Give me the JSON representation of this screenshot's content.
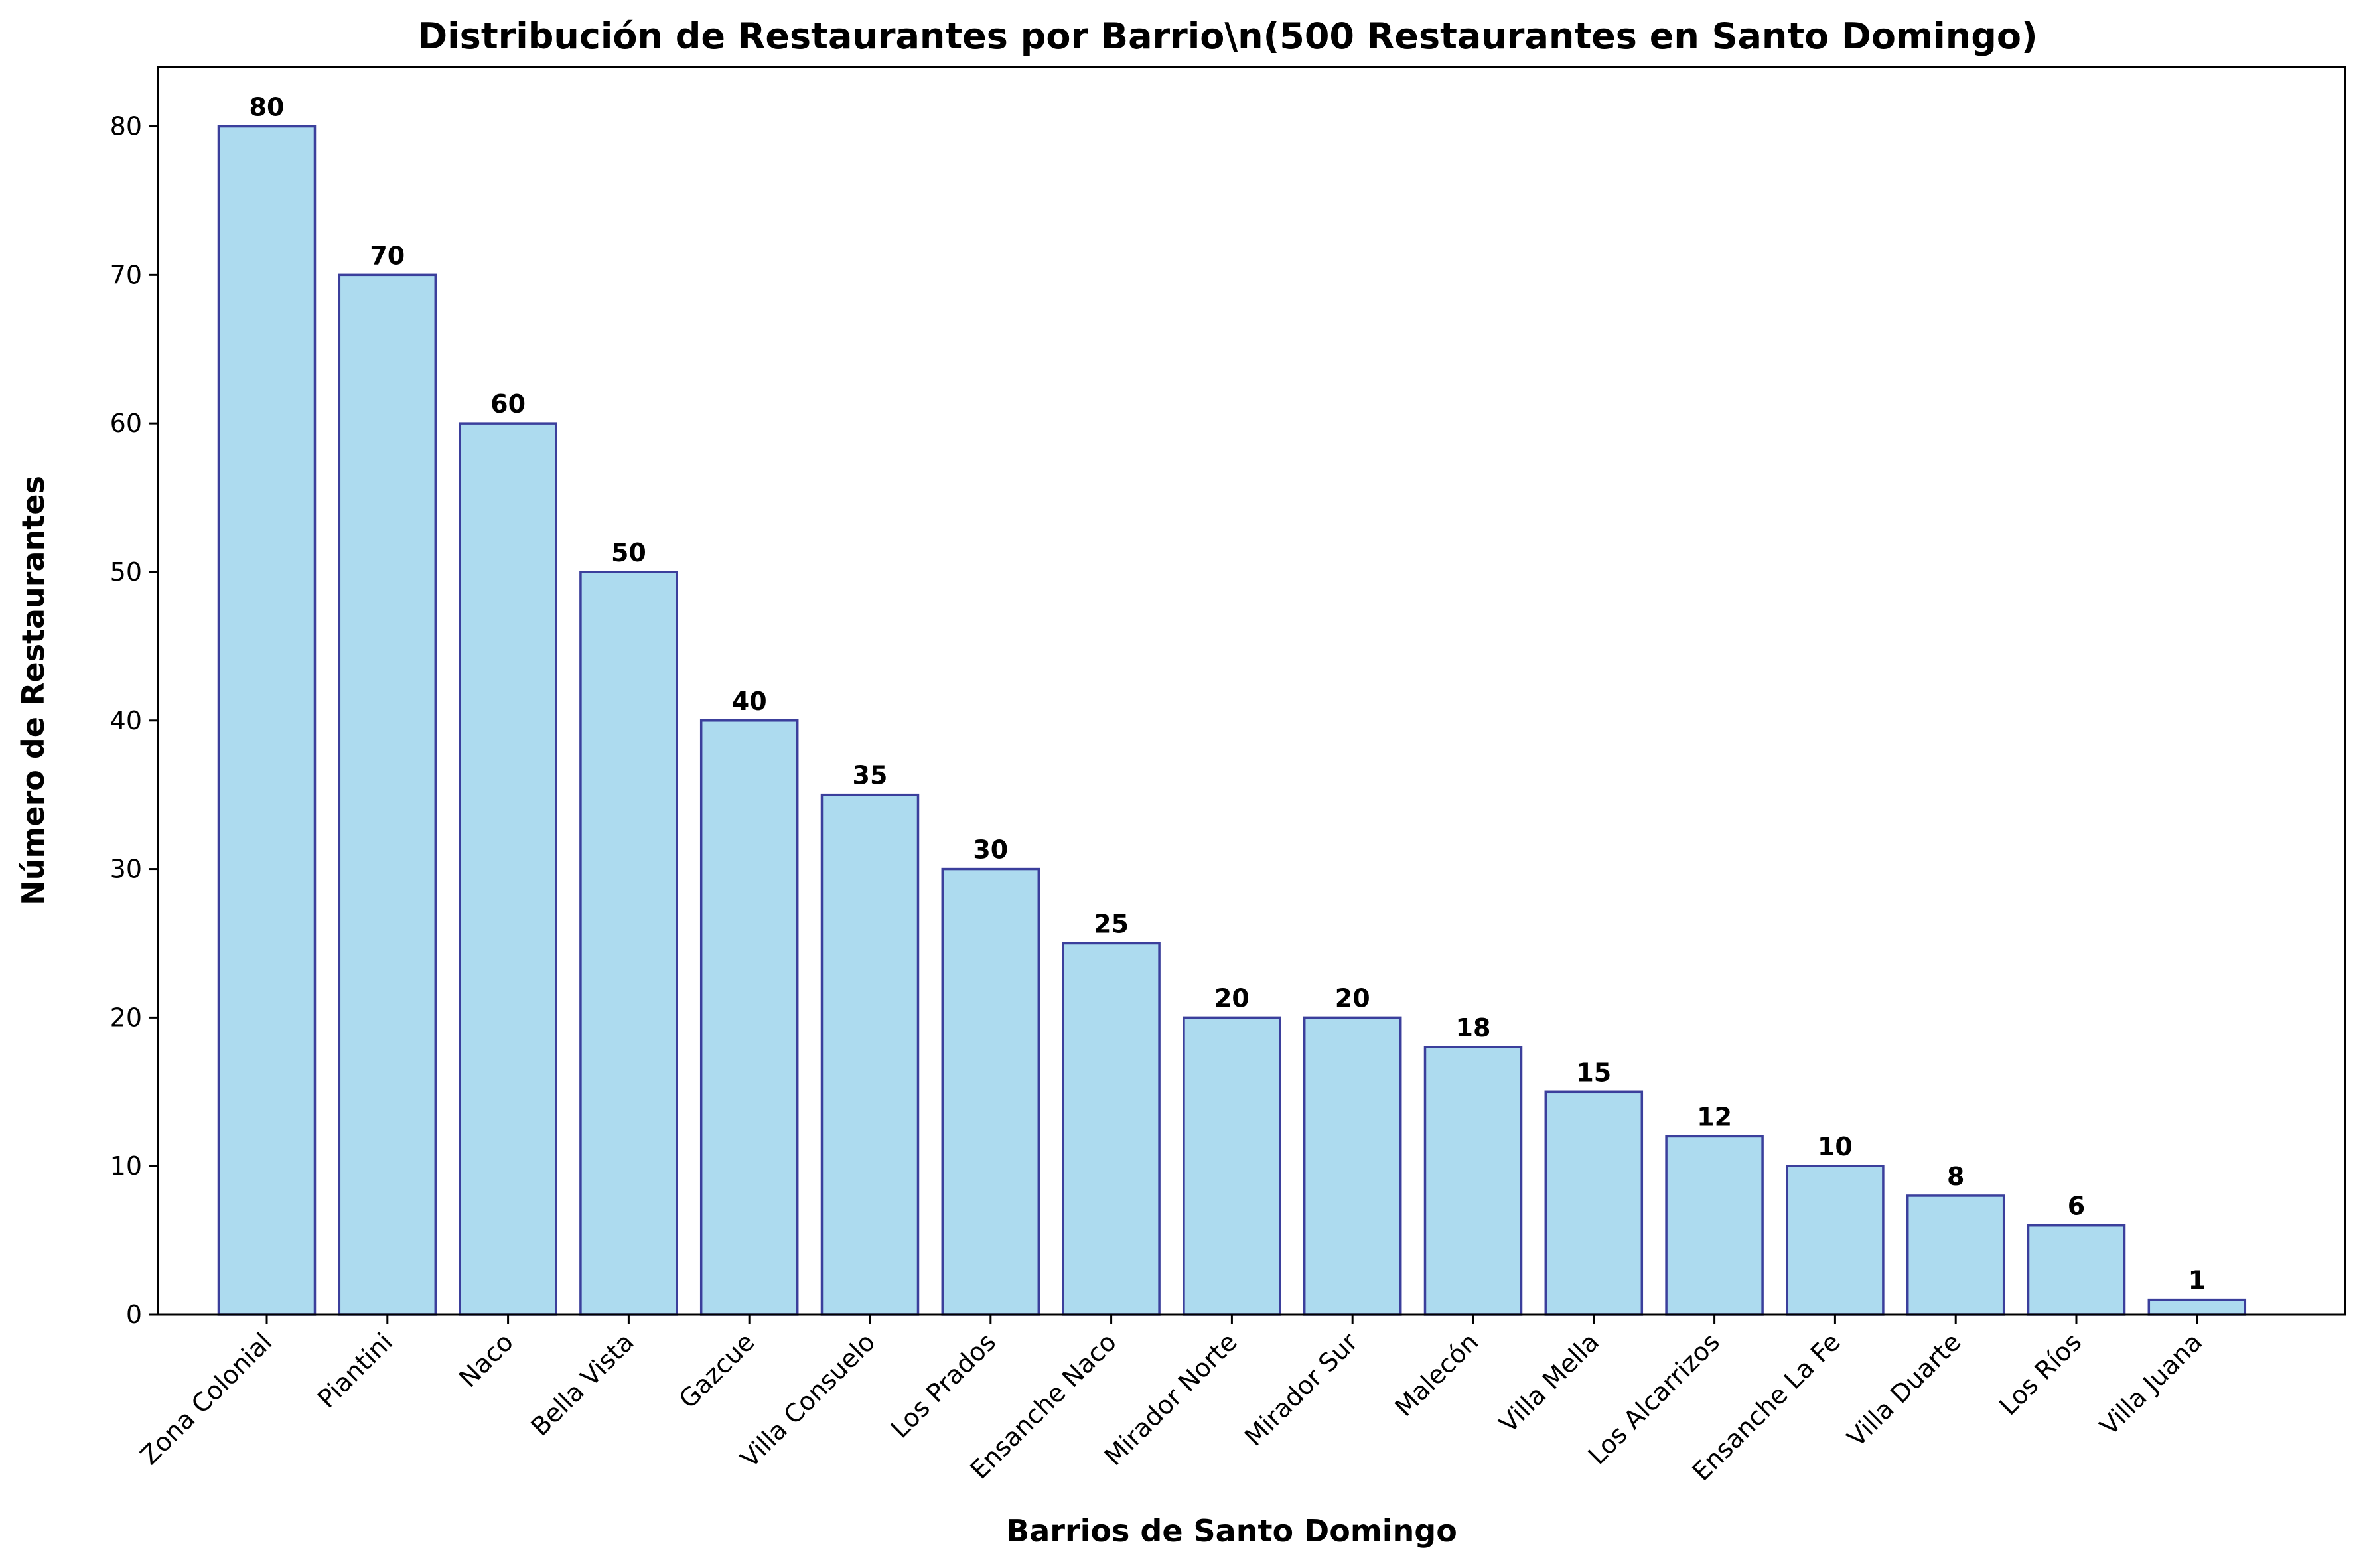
{
  "chart_data": {
    "type": "bar",
    "title": "Distribución de Restaurantes por Barrio\\n(500 Restaurantes en Santo Domingo)",
    "xlabel": "Barrios de Santo Domingo",
    "ylabel": "Número de Restaurantes",
    "categories": [
      "Zona Colonial",
      "Piantini",
      "Naco",
      "Bella Vista",
      "Gazcue",
      "Villa Consuelo",
      "Los Prados",
      "Ensanche Naco",
      "Mirador Norte",
      "Mirador Sur",
      "Malecón",
      "Villa Mella",
      "Los Alcarrizos",
      "Ensanche La Fe",
      "Villa Duarte",
      "Los Ríos",
      "Villa Juana"
    ],
    "values": [
      80,
      70,
      60,
      50,
      40,
      35,
      30,
      25,
      20,
      20,
      18,
      15,
      12,
      10,
      8,
      6,
      1
    ],
    "data_labels": [
      "80",
      "70",
      "60",
      "50",
      "40",
      "35",
      "30",
      "25",
      "20",
      "20",
      "18",
      "15",
      "12",
      "10",
      "8",
      "6",
      "1"
    ],
    "ylim": [
      0,
      84
    ],
    "yticks": [
      0,
      10,
      20,
      30,
      40,
      50,
      60,
      70,
      80
    ],
    "grid": false,
    "bar_color": "#ADDBEF",
    "bar_edge_color": "#3B3F9C"
  }
}
